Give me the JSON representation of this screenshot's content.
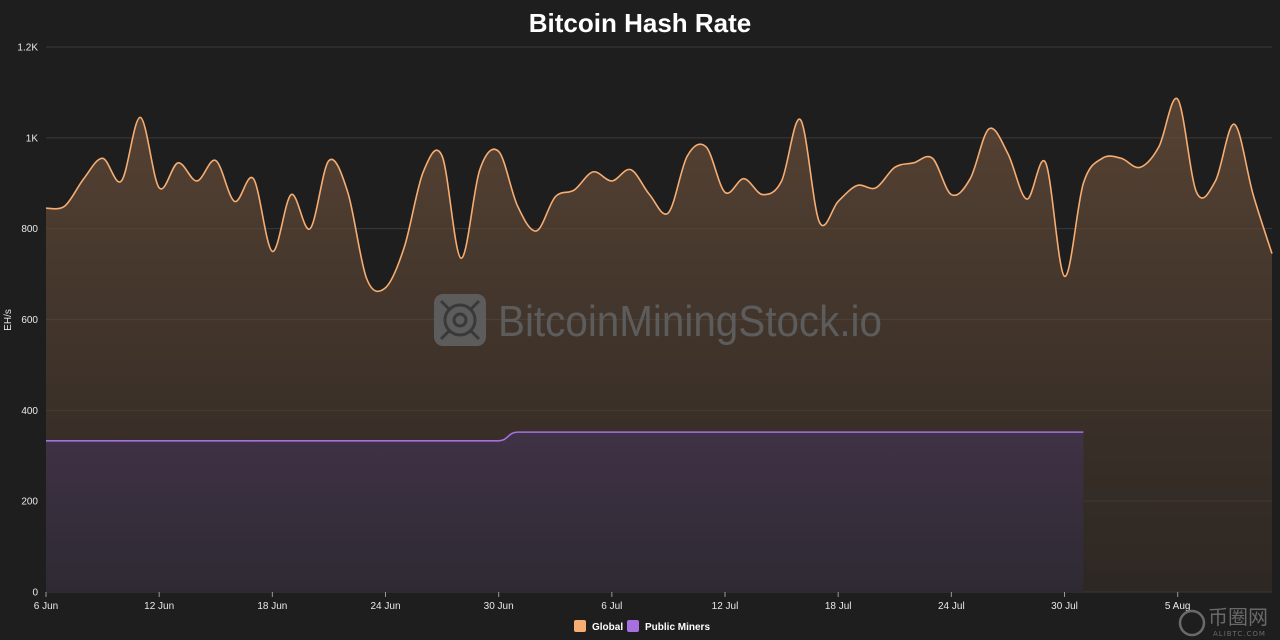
{
  "chart_data": {
    "type": "area",
    "title": "Bitcoin Hash Rate",
    "ylabel": "EH/s",
    "xlabel": "",
    "ylim": [
      0,
      1200
    ],
    "y_ticks": [
      {
        "value": 0,
        "label": "0"
      },
      {
        "value": 200,
        "label": "200"
      },
      {
        "value": 400,
        "label": "400"
      },
      {
        "value": 600,
        "label": "600"
      },
      {
        "value": 800,
        "label": "800"
      },
      {
        "value": 1000,
        "label": "1K"
      },
      {
        "value": 1200,
        "label": "1.2K"
      }
    ],
    "x_ticks": [
      {
        "label": "6 Jun"
      },
      {
        "label": "12 Jun"
      },
      {
        "label": "18 Jun"
      },
      {
        "label": "24 Jun"
      },
      {
        "label": "30 Jun"
      },
      {
        "label": "6 Jul"
      },
      {
        "label": "12 Jul"
      },
      {
        "label": "18 Jul"
      },
      {
        "label": "24 Jul"
      },
      {
        "label": "30 Jul"
      },
      {
        "label": "5 Aug"
      }
    ],
    "x_start": "6 Jun",
    "x_end": "10 Aug",
    "grid": true,
    "legend_position": "bottom-center",
    "series": [
      {
        "name": "Global",
        "color": "#f6ad72",
        "x": [
          "6 Jun",
          "7 Jun",
          "8 Jun",
          "9 Jun",
          "10 Jun",
          "11 Jun",
          "12 Jun",
          "13 Jun",
          "14 Jun",
          "15 Jun",
          "16 Jun",
          "17 Jun",
          "18 Jun",
          "19 Jun",
          "20 Jun",
          "21 Jun",
          "22 Jun",
          "23 Jun",
          "24 Jun",
          "25 Jun",
          "26 Jun",
          "27 Jun",
          "28 Jun",
          "29 Jun",
          "30 Jun",
          "1 Jul",
          "2 Jul",
          "3 Jul",
          "4 Jul",
          "5 Jul",
          "6 Jul",
          "7 Jul",
          "8 Jul",
          "9 Jul",
          "10 Jul",
          "11 Jul",
          "12 Jul",
          "13 Jul",
          "14 Jul",
          "15 Jul",
          "16 Jul",
          "17 Jul",
          "18 Jul",
          "19 Jul",
          "20 Jul",
          "21 Jul",
          "22 Jul",
          "23 Jul",
          "24 Jul",
          "25 Jul",
          "26 Jul",
          "27 Jul",
          "28 Jul",
          "29 Jul",
          "30 Jul",
          "31 Jul",
          "1 Aug",
          "2 Aug",
          "3 Aug",
          "4 Aug",
          "5 Aug",
          "6 Aug",
          "7 Aug",
          "8 Aug",
          "9 Aug",
          "10 Aug"
        ],
        "values": [
          845,
          850,
          910,
          955,
          905,
          1045,
          890,
          945,
          905,
          950,
          860,
          910,
          750,
          875,
          800,
          950,
          880,
          690,
          670,
          760,
          925,
          960,
          735,
          930,
          970,
          850,
          795,
          870,
          885,
          925,
          905,
          930,
          875,
          835,
          960,
          980,
          880,
          910,
          875,
          905,
          1040,
          815,
          860,
          895,
          890,
          935,
          945,
          955,
          875,
          910,
          1020,
          965,
          865,
          945,
          695,
          900,
          955,
          955,
          935,
          980,
          1085,
          880,
          905,
          1030,
          875,
          745
        ]
      },
      {
        "name": "Public Miners",
        "color": "#a86fe0",
        "x": [
          "6 Jun",
          "30 Jun",
          "1 Jul",
          "31 Jul"
        ],
        "values": [
          333,
          333,
          352,
          352
        ]
      }
    ]
  },
  "legend": {
    "global_label": "Global",
    "public_label": "Public Miners"
  },
  "watermark": {
    "text": "BitcoinMiningStock.io"
  },
  "corner_logo": {
    "text": "币圈网",
    "sub": "ALIBTC.COM"
  }
}
